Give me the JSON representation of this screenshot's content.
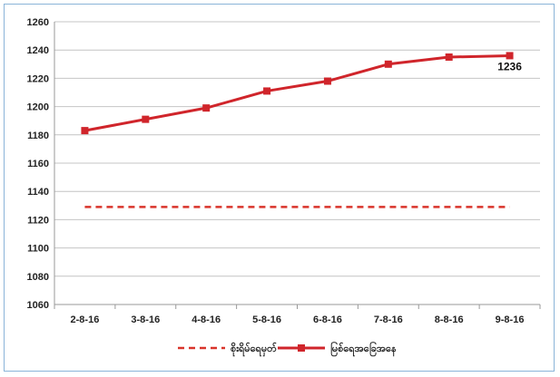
{
  "chart_data": {
    "type": "line",
    "categories": [
      "2-8-16",
      "3-8-16",
      "4-8-16",
      "5-8-16",
      "6-8-16",
      "7-8-16",
      "8-8-16",
      "9-8-16"
    ],
    "series": [
      {
        "name": "စိုးရိမ်ရေမှတ်",
        "values": [
          1129,
          1129,
          1129,
          1129,
          1129,
          1129,
          1129,
          1129
        ],
        "color": "#d9342b",
        "style": "dashed",
        "marker": "none"
      },
      {
        "name": "မြစ်ရေအခြေအနေ",
        "values": [
          1183,
          1191,
          1199,
          1211,
          1218,
          1230,
          1235,
          1236
        ],
        "color": "#d0252b",
        "style": "solid",
        "marker": "square"
      }
    ],
    "data_labels": [
      {
        "series": 1,
        "index": 7,
        "text": "1236"
      }
    ],
    "yticks": [
      "1060",
      "1080",
      "1100",
      "1120",
      "1140",
      "1160",
      "1180",
      "1200",
      "1220",
      "1240",
      "1260"
    ],
    "ylim": [
      1060,
      1260
    ],
    "grid": true,
    "legend_position": "bottom"
  }
}
